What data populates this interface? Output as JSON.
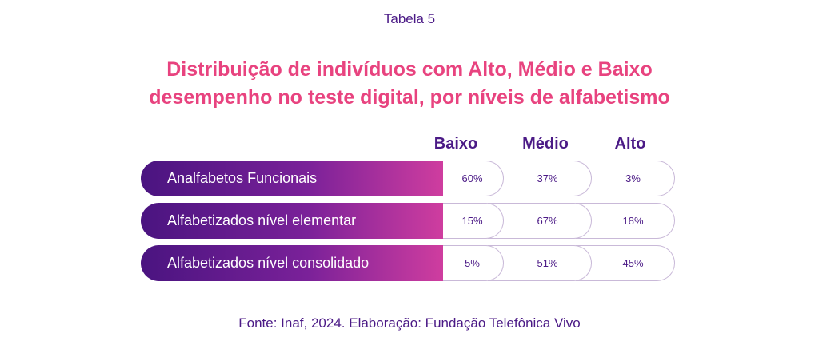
{
  "caption": "Tabela 5",
  "title_line1": "Distribuição de indivíduos com Alto, Médio e Baixo",
  "title_line2": "desempenho no teste digital, por níveis de alfabetismo",
  "columns": [
    "Baixo",
    "Médio",
    "Alto"
  ],
  "rows": [
    {
      "label": "Analfabetos Funcionais",
      "values": [
        "60%",
        "37%",
        "3%"
      ]
    },
    {
      "label": "Alfabetizados nível elementar",
      "values": [
        "15%",
        "67%",
        "18%"
      ]
    },
    {
      "label": "Alfabetizados nível consolidado",
      "values": [
        "5%",
        "51%",
        "45%"
      ]
    }
  ],
  "source": "Fonte:  Inaf, 2024. Elaboração: Fundação Telefônica Vivo",
  "colors": {
    "title": "#e8437f",
    "text": "#4b1a86",
    "gradient_start": "#4a1480",
    "gradient_end": "#cf3d9f",
    "cell_border": "#c9b9d8"
  }
}
